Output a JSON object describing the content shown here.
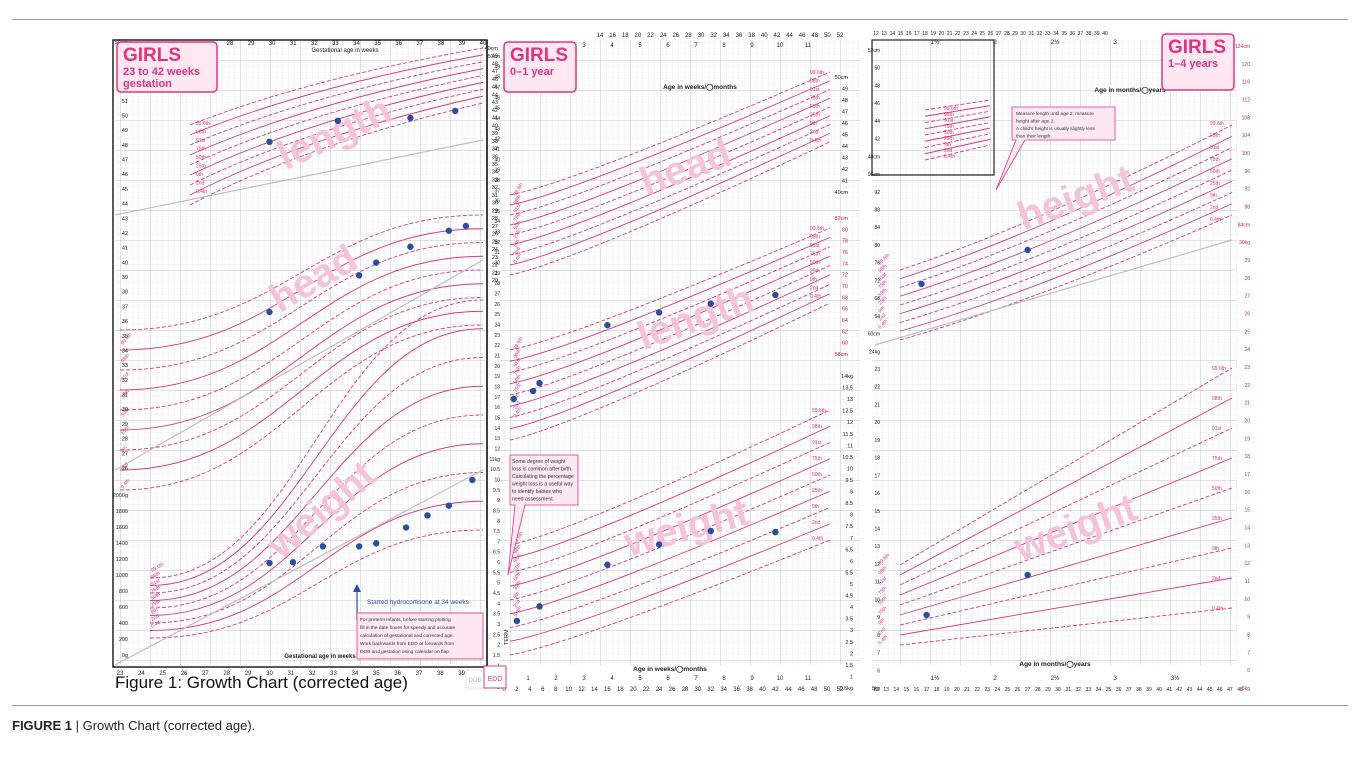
{
  "caption": {
    "figure_label": "FIGURE 1",
    "separator": " | ",
    "text": "Growth Chart (corrected age)."
  },
  "embedded_caption": "Figure 1: Growth Chart (corrected age)",
  "colors": {
    "pink": "#e0357e",
    "pink_light": "#f2a3c6",
    "grey_line": "#bfbfbf",
    "dot": "#2a4f9e",
    "panel_border": "#222222",
    "watermark": "#f4c3d8"
  },
  "panels": [
    {
      "id": "preterm",
      "title": "GIRLS",
      "subtitle_lines": [
        "23 to 42 weeks",
        "gestation"
      ],
      "top_axis_label": "Gestational age in weeks",
      "bottom_axis_label": "Gestational age in weeks",
      "x_ticks": [
        "23",
        "24",
        "25",
        "26",
        "27",
        "28",
        "29",
        "30",
        "31",
        "32",
        "33",
        "34",
        "35",
        "36",
        "37",
        "38",
        "39",
        "40"
      ],
      "top_ticks": [
        "28",
        "29",
        "30",
        "31",
        "32",
        "33",
        "34",
        "35",
        "36",
        "37",
        "38",
        "39",
        "40"
      ],
      "top_ticks_low": [
        "24",
        "25",
        "26"
      ],
      "left_ticks_head": [
        "56cm",
        "54",
        "53",
        "52",
        "51",
        "50",
        "49",
        "48",
        "47",
        "46",
        "45",
        "44",
        "43",
        "42",
        "41",
        "40",
        "39",
        "38",
        "37",
        "36",
        "35",
        "34",
        "33",
        "32",
        "31",
        "30",
        "29",
        "28",
        "27",
        "26"
      ],
      "left_ticks_weight": [
        "2000g",
        "1800",
        "1600",
        "1400",
        "1200",
        "1000",
        "800",
        "600",
        "400",
        "200",
        "0g"
      ],
      "right_ticks": [
        "40cm",
        "49",
        "48",
        "47",
        "46",
        "45",
        "44",
        "43",
        "42",
        "41",
        "40",
        "39",
        "38",
        "37",
        "36",
        "35",
        "34",
        "33",
        "32",
        "31",
        "30",
        "29",
        "28",
        "27",
        "26",
        "25",
        "24",
        "23",
        "22",
        "21",
        "20"
      ],
      "watermarks": [
        "length",
        "head",
        "weight"
      ],
      "centile_labels": [
        "99.6th",
        "98th",
        "91st",
        "75th",
        "50th",
        "25th",
        "9th",
        "2nd",
        "0.4th"
      ],
      "annotation_arrow": "Started hydrocortisone at 34 weeks",
      "annotation_box": [
        "For preterm infants, before starting plotting",
        "fill in the date boxes for speedy and accurate",
        "calculation of gestational and corrected age.",
        "Work backwards from EDD or forwards from",
        "DOB and gestation using calendar on flap."
      ],
      "corner_labels": [
        "DOB",
        "EDD"
      ],
      "series": [
        {
          "name": "length",
          "x": [
            30.0,
            33.2,
            36.6,
            38.7
          ],
          "y": [
            44.3,
            45.8,
            46.0,
            46.5
          ]
        },
        {
          "name": "head",
          "x": [
            30.0,
            34.2,
            35.0,
            36.6,
            38.4,
            39.2
          ],
          "y": [
            25.7,
            28.0,
            28.8,
            29.8,
            30.8,
            31.1
          ]
        },
        {
          "name": "weight",
          "x": [
            30.0,
            31.1,
            32.5,
            34.2,
            35.0,
            36.4,
            37.4,
            38.4,
            39.5
          ],
          "y": [
            1120,
            1130,
            1340,
            1340,
            1380,
            1590,
            1750,
            1880,
            2220
          ]
        }
      ]
    },
    {
      "id": "infant",
      "title": "GIRLS",
      "subtitle_lines": [
        "0–1 year"
      ],
      "top_axis_label": "Age in weeks/◯months",
      "bottom_axis_label": "Age in weeks/◯months",
      "week_ticks": [
        "0",
        "2",
        "4",
        "6",
        "8",
        "10",
        "12",
        "14",
        "16",
        "18",
        "20",
        "22",
        "24",
        "26",
        "28",
        "30",
        "32",
        "34",
        "36",
        "38",
        "40",
        "42",
        "44",
        "46",
        "48",
        "50",
        "52"
      ],
      "top_week_ticks": [
        "14",
        "16",
        "18",
        "20",
        "22",
        "24",
        "26",
        "28",
        "30",
        "32",
        "34",
        "36",
        "38",
        "40",
        "42",
        "44",
        "46",
        "48",
        "50",
        "52"
      ],
      "month_ticks": [
        "1",
        "2",
        "3",
        "4",
        "5",
        "6",
        "7",
        "8",
        "9",
        "10",
        "11"
      ],
      "left_ticks": [
        "50cm",
        "49",
        "48",
        "47",
        "46",
        "45",
        "44",
        "43",
        "42",
        "41",
        "40",
        "39",
        "38",
        "37",
        "36",
        "35",
        "34",
        "33",
        "32",
        "31",
        "30",
        "29",
        "28",
        "27",
        "26",
        "25",
        "24",
        "23",
        "22",
        "21",
        "20",
        "19",
        "18",
        "17",
        "16",
        "15",
        "14",
        "13",
        "12",
        "11kg",
        "10.5",
        "10",
        "9.5",
        "9",
        "8.5",
        "8",
        "7.5",
        "7",
        "6.5",
        "6",
        "5.5",
        "5",
        "4.5",
        "4",
        "3.5",
        "3",
        "2.5",
        "2",
        "1.5",
        "1",
        "0.5",
        "0kg"
      ],
      "right_ticks_head": [
        "50cm",
        "49",
        "48",
        "47",
        "46",
        "45",
        "44",
        "43",
        "42",
        "41",
        "40cm"
      ],
      "right_ticks_length": [
        "82cm",
        "80",
        "78",
        "76",
        "74",
        "72",
        "70",
        "68",
        "66",
        "64",
        "62",
        "60",
        "58cm"
      ],
      "right_ticks_weight": [
        "14kg",
        "13.5",
        "13",
        "12.5",
        "12",
        "11.5",
        "11",
        "10.5",
        "10",
        "9.5",
        "9",
        "8.5",
        "8",
        "7.5",
        "7",
        "6.5",
        "6",
        "5.5",
        "5",
        "4.5",
        "4",
        "3.5",
        "3",
        "2.5",
        "2",
        "1.5",
        "1",
        "0.5kg"
      ],
      "watermarks": [
        "head",
        "length",
        "weight"
      ],
      "centile_labels": [
        "99.6th",
        "98th",
        "91st",
        "75th",
        "50th",
        "25th",
        "9th",
        "2nd",
        "0.4th"
      ],
      "term_label": "TERM",
      "annotation_box": [
        "Some degree of weight",
        "loss is common after birth.",
        "Calculating the percentage",
        "weight loss is a useful way",
        "to identify babies who",
        "need assessment."
      ],
      "series": [
        {
          "name": "length",
          "x": [
            1.5,
            4.5,
            5.5,
            16,
            24,
            32,
            42
          ],
          "y": [
            50.5,
            51.5,
            52.5,
            59.8,
            61.4,
            62.5,
            63.6
          ]
        },
        {
          "name": "weight",
          "x": [
            2,
            5.5,
            16,
            24,
            32,
            42
          ],
          "y": [
            2.1,
            2.75,
            4.6,
            5.5,
            6.1,
            6.05
          ]
        }
      ]
    },
    {
      "id": "toddler",
      "title": "GIRLS",
      "subtitle_lines": [
        "1–4 years"
      ],
      "top_axis_label": "Age in months/◯years",
      "bottom_axis_label": "Age in months/◯years",
      "month_ticks_bottom": [
        "12",
        "13",
        "14",
        "15",
        "16",
        "17",
        "18",
        "19",
        "20",
        "21",
        "22",
        "23",
        "24",
        "25",
        "26",
        "27",
        "28",
        "29",
        "30",
        "31",
        "32",
        "33",
        "34",
        "35",
        "36",
        "37",
        "38",
        "39",
        "40",
        "41",
        "42",
        "43",
        "44",
        "45",
        "46",
        "47",
        "48"
      ],
      "year_circles": [
        "1½",
        "2",
        "2½",
        "3",
        "3½"
      ],
      "left_ticks": [
        "52cm",
        "50",
        "48",
        "46",
        "44",
        "42",
        "40cm",
        "96cm",
        "92",
        "88",
        "84",
        "80",
        "76",
        "72",
        "68",
        "64",
        "60cm",
        "24kg",
        "23",
        "22",
        "21",
        "20",
        "19",
        "18",
        "17",
        "16",
        "15",
        "14",
        "13",
        "12",
        "11",
        "10",
        "9",
        "8",
        "7",
        "6",
        "5kg"
      ],
      "right_ticks": [
        "124cm",
        "120",
        "116",
        "112",
        "108",
        "104",
        "100",
        "96",
        "92",
        "88",
        "84cm",
        "30kg",
        "29",
        "28",
        "27",
        "26",
        "25",
        "24",
        "23",
        "22",
        "21",
        "20",
        "19",
        "18",
        "17",
        "16",
        "15",
        "14",
        "13",
        "12",
        "11",
        "10",
        "9",
        "8",
        "7",
        "6",
        "5kg"
      ],
      "watermarks": [
        "height",
        "weight"
      ],
      "centile_labels": [
        "99.6th",
        "98th",
        "91st",
        "75th",
        "50th",
        "25th",
        "9th",
        "2nd",
        "0.4th"
      ],
      "annotation_box": [
        "Measure length until age 2; measure",
        "height after age 2.",
        "A child's height is usually slightly less",
        "than their length."
      ],
      "series": [
        {
          "name": "height",
          "x": [
            16.5,
            27
          ],
          "y": [
            76.5,
            82.5
          ]
        },
        {
          "name": "weight",
          "x": [
            17,
            27
          ],
          "y": [
            9.2,
            10.8
          ]
        }
      ]
    }
  ]
}
